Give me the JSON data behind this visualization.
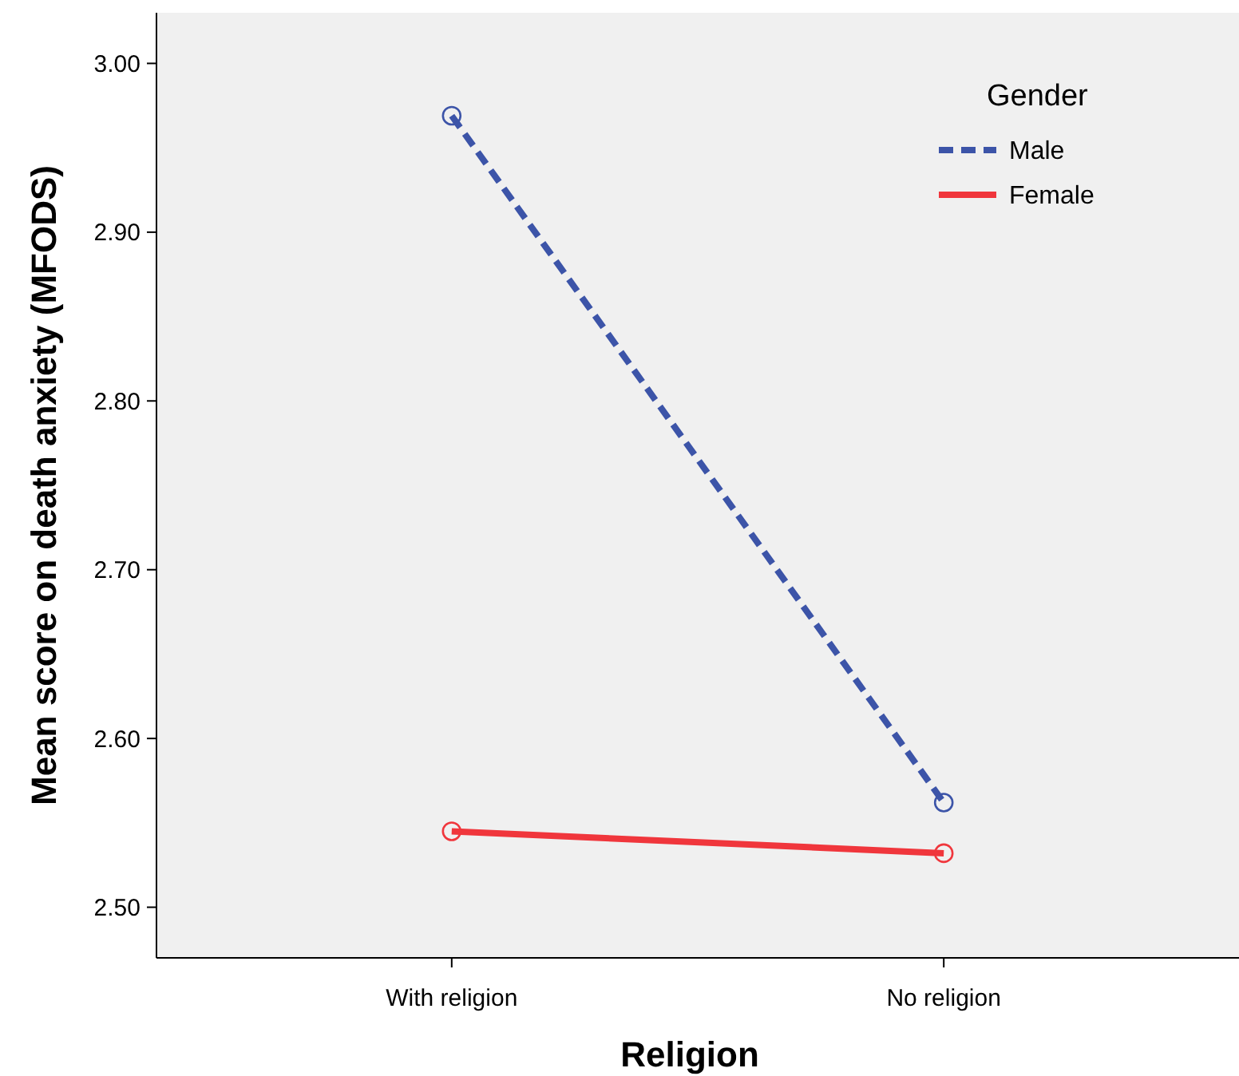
{
  "chart_data": {
    "type": "line",
    "xlabel": "Religion",
    "ylabel": "Mean score on death anxiety (MFODS)",
    "legend_title": "Gender",
    "categories": [
      "With religion",
      "No religion"
    ],
    "series": [
      {
        "name": "Male",
        "color": "#3c54a8",
        "values": [
          2.969,
          2.562
        ],
        "line_style": "dashed"
      },
      {
        "name": "Female",
        "color": "#f0363c",
        "values": [
          2.545,
          2.532
        ],
        "line_style": "solid"
      }
    ],
    "ylim": [
      2.47,
      3.03
    ],
    "yticks": [
      {
        "value": 2.5,
        "label": "2.50"
      },
      {
        "value": 2.6,
        "label": "2.60"
      },
      {
        "value": 2.7,
        "label": "2.70"
      },
      {
        "value": 2.8,
        "label": "2.80"
      },
      {
        "value": 2.9,
        "label": "2.90"
      },
      {
        "value": 3.0,
        "label": "3.00"
      }
    ],
    "grid": false,
    "legend": "top right",
    "marker": "circle"
  }
}
